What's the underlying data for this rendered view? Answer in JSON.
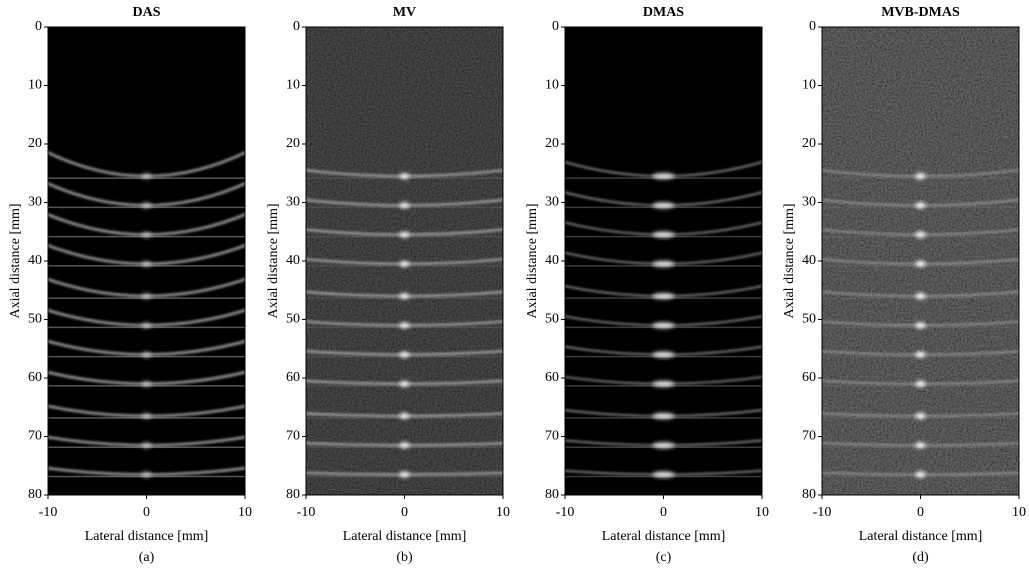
{
  "chart_data": [
    {
      "type": "image",
      "title": "DAS",
      "xlabel": "Lateral distance [mm]",
      "ylabel": "Axial distance [mm]",
      "caption": "(a)",
      "xlim": [
        -10,
        10
      ],
      "xticks": [
        -10,
        0,
        10
      ],
      "ylim": [
        0,
        80
      ],
      "yticks": [
        0,
        10,
        20,
        30,
        40,
        50,
        60,
        70,
        80
      ],
      "yreverse": true,
      "x": [
        0,
        0,
        0,
        0,
        0,
        0,
        0,
        0,
        0,
        0,
        0
      ],
      "values": [
        25.5,
        30.5,
        35.5,
        40.5,
        46,
        51,
        56,
        61,
        66.5,
        71.5,
        76.5
      ]
    },
    {
      "type": "image",
      "title": "MV",
      "xlabel": "Lateral distance [mm]",
      "ylabel": "Axial distance [mm]",
      "caption": "(b)",
      "xlim": [
        -10,
        10
      ],
      "xticks": [
        -10,
        0,
        10
      ],
      "ylim": [
        0,
        80
      ],
      "yticks": [
        0,
        10,
        20,
        30,
        40,
        50,
        60,
        70,
        80
      ],
      "yreverse": true,
      "x": [
        0,
        0,
        0,
        0,
        0,
        0,
        0,
        0,
        0,
        0,
        0
      ],
      "values": [
        25.5,
        30.5,
        35.5,
        40.5,
        46,
        51,
        56,
        61,
        66.5,
        71.5,
        76.5
      ]
    },
    {
      "type": "image",
      "title": "DMAS",
      "xlabel": "Lateral distance [mm]",
      "ylabel": "Axial distance [mm]",
      "caption": "(c)",
      "xlim": [
        -10,
        10
      ],
      "xticks": [
        -10,
        0,
        10
      ],
      "ylim": [
        0,
        80
      ],
      "yticks": [
        0,
        10,
        20,
        30,
        40,
        50,
        60,
        70,
        80
      ],
      "yreverse": true,
      "x": [
        0,
        0,
        0,
        0,
        0,
        0,
        0,
        0,
        0,
        0,
        0
      ],
      "values": [
        25.5,
        30.5,
        35.5,
        40.5,
        46,
        51,
        56,
        61,
        66.5,
        71.5,
        76.5
      ]
    },
    {
      "type": "image",
      "title": "MVB-DMAS",
      "xlabel": "Lateral distance [mm]",
      "ylabel": "Axial distance [mm]",
      "caption": "(d)",
      "xlim": [
        -10,
        10
      ],
      "xticks": [
        -10,
        0,
        10
      ],
      "ylim": [
        0,
        80
      ],
      "yticks": [
        0,
        10,
        20,
        30,
        40,
        50,
        60,
        70,
        80
      ],
      "yreverse": true,
      "x": [
        0,
        0,
        0,
        0,
        0,
        0,
        0,
        0,
        0,
        0,
        0
      ],
      "values": [
        25.5,
        30.5,
        35.5,
        40.5,
        46,
        51,
        56,
        61,
        66.5,
        71.5,
        76.5
      ]
    }
  ]
}
